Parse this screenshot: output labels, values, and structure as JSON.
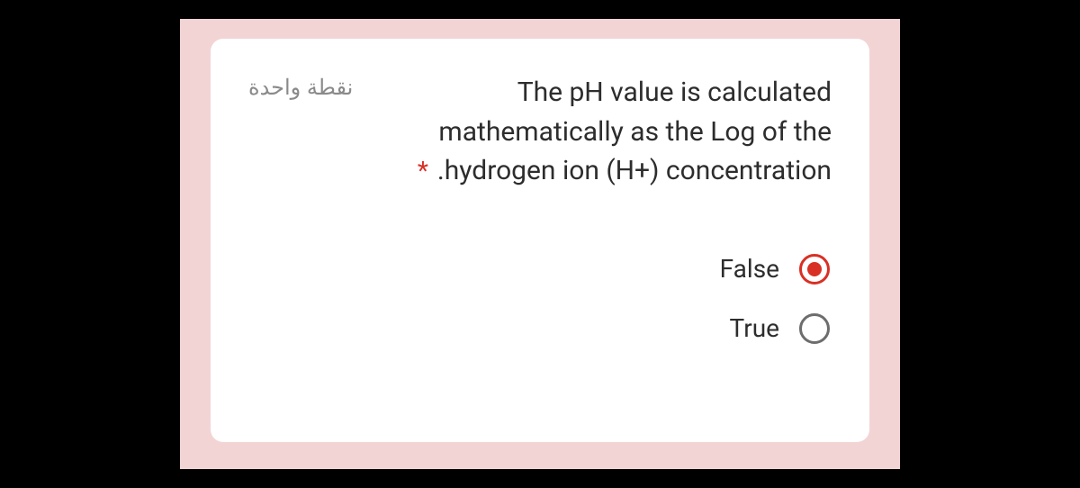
{
  "card": {
    "background_color": "#ffffff",
    "border_radius": 14
  },
  "frame": {
    "background_color": "#f3d4d4"
  },
  "points": {
    "label": "نقطة واحدة",
    "color": "#8a8a8a",
    "fontsize": 24
  },
  "question": {
    "text": "The pH value is calculated mathematically as the Log of the .hydrogen ion (H+) concentration",
    "required_marker": "*",
    "required_color": "#d93025",
    "text_color": "#2d2d2d",
    "fontsize": 30
  },
  "options": [
    {
      "label": "False",
      "selected": true
    },
    {
      "label": "True",
      "selected": false
    }
  ],
  "radio_style": {
    "size": 34,
    "border_width": 3,
    "unselected_border": "#6d6d6d",
    "selected_color": "#d93025",
    "inner_dot": 16
  }
}
